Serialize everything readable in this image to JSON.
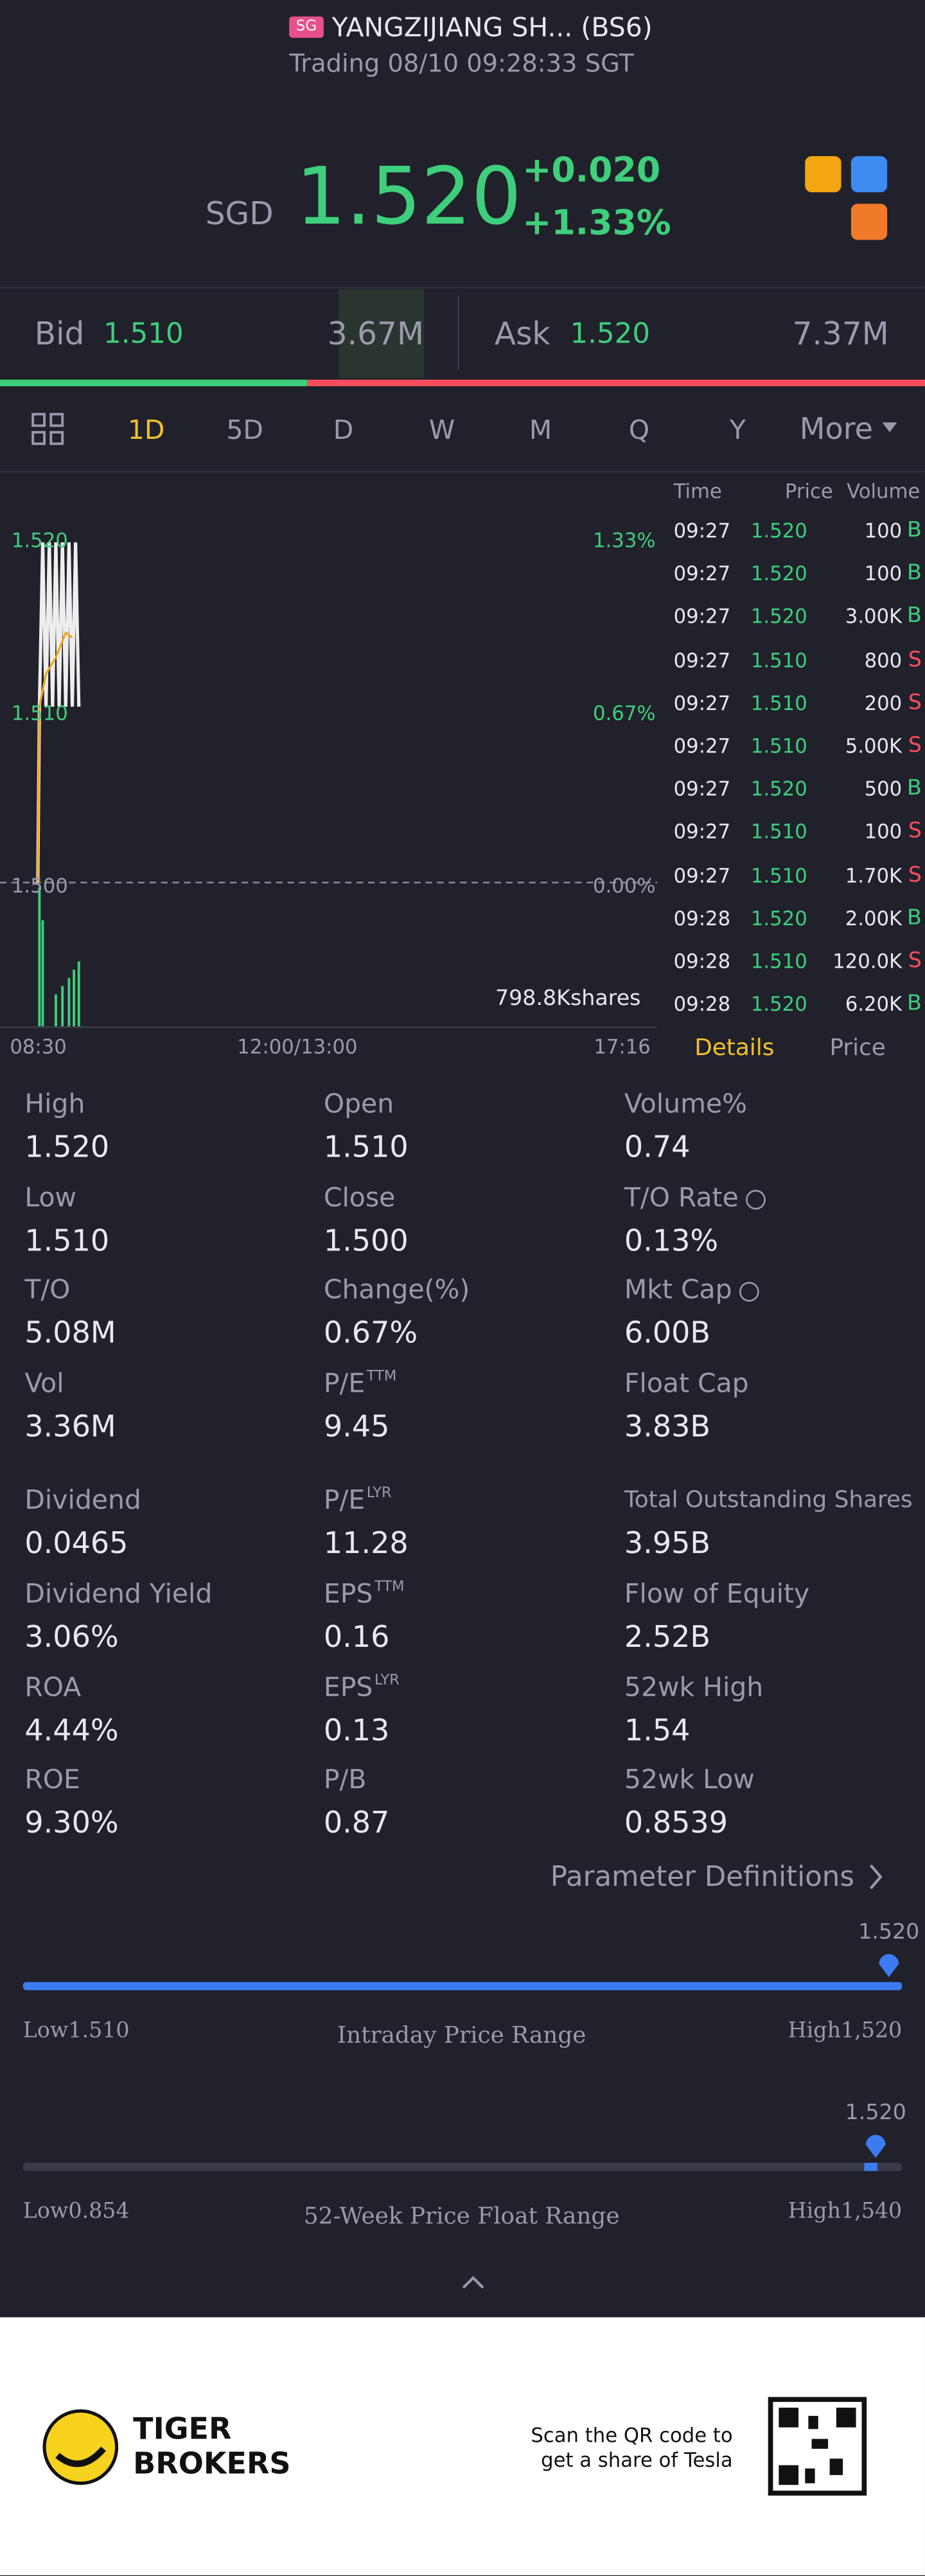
{
  "header": {
    "market": "SG",
    "name": "YANGZIJIANG SH... (BS6)",
    "status": "Trading 08/10 09:28:33 SGT"
  },
  "quote": {
    "currency": "SGD",
    "price": "1.520",
    "change": "+0.020",
    "change_pct": "+1.33%"
  },
  "bidask": {
    "bid_label": "Bid",
    "bid": "1.510",
    "bid_vol": "3.67M",
    "ask_label": "Ask",
    "ask": "1.520",
    "ask_vol": "7.37M"
  },
  "tabs": [
    "1D",
    "5D",
    "D",
    "W",
    "M",
    "Q",
    "Y",
    "More"
  ],
  "chart": {
    "left_labels": [
      "1.520",
      "1.510",
      "1.500"
    ],
    "right_labels": [
      "1.33%",
      "0.67%",
      "0.00%"
    ],
    "volume": "798.8Kshares",
    "time_labels": [
      "08:30",
      "12:00/13:00",
      "17:16"
    ]
  },
  "trades": {
    "headers": [
      "Time",
      "Price",
      "Volume"
    ],
    "rows": [
      [
        "09:27",
        "1.520",
        "100",
        "B"
      ],
      [
        "09:27",
        "1.520",
        "100",
        "B"
      ],
      [
        "09:27",
        "1.520",
        "3.00K",
        "B"
      ],
      [
        "09:27",
        "1.510",
        "800",
        "S"
      ],
      [
        "09:27",
        "1.510",
        "200",
        "S"
      ],
      [
        "09:27",
        "1.510",
        "5.00K",
        "S"
      ],
      [
        "09:27",
        "1.520",
        "500",
        "B"
      ],
      [
        "09:27",
        "1.510",
        "100",
        "S"
      ],
      [
        "09:27",
        "1.510",
        "1.70K",
        "S"
      ],
      [
        "09:28",
        "1.520",
        "2.00K",
        "B"
      ],
      [
        "09:28",
        "1.510",
        "120.0K",
        "S"
      ],
      [
        "09:28",
        "1.520",
        "6.20K",
        "B"
      ]
    ]
  },
  "trade_tabs": [
    "Details",
    "Price"
  ],
  "stats": [
    {
      "label": "High",
      "value": "1.520"
    },
    {
      "label": "Open",
      "value": "1.510"
    },
    {
      "label": "Volume%",
      "value": "0.74"
    },
    {
      "label": "Low",
      "value": "1.510"
    },
    {
      "label": "Close",
      "value": "1.500"
    },
    {
      "label": "T/O Rate",
      "value": "0.13%"
    },
    {
      "label": "T/O",
      "value": "5.08M"
    },
    {
      "label": "Change(%)",
      "value": "0.67%"
    },
    {
      "label": "Mkt Cap",
      "value": "6.00B"
    },
    {
      "label": "Vol",
      "value": "3.36M"
    },
    {
      "label": "P/E",
      "sup": "TTM",
      "value": "9.45"
    },
    {
      "label": "Float Cap",
      "value": "3.83B"
    },
    {
      "label": "Dividend",
      "value": "0.0465"
    },
    {
      "label": "P/E",
      "sup": "LYR",
      "value": "11.28"
    },
    {
      "label": "Total Outstanding Shares",
      "value": "3.95B"
    },
    {
      "label": "Dividend Yield",
      "value": "3.06%"
    },
    {
      "label": "EPS",
      "sup": "TTM",
      "value": "0.16"
    },
    {
      "label": "Flow of Equity",
      "value": "2.52B"
    },
    {
      "label": "ROA",
      "value": "4.44%"
    },
    {
      "label": "EPS",
      "sup": "LYR",
      "value": "0.13"
    },
    {
      "label": "52wk High",
      "value": "1.54"
    },
    {
      "label": "ROE",
      "value": "9.30%"
    },
    {
      "label": "P/B",
      "value": "0.87"
    },
    {
      "label": "52wk Low",
      "value": "0.8539"
    }
  ],
  "param_link": "Parameter Definitions",
  "ranges": [
    {
      "current": "1.520",
      "low": "Low1.510",
      "title": "Intraday Price Range",
      "high": "High1,520"
    },
    {
      "current": "1.520",
      "low": "Low0.854",
      "title": "52-Week Price Float Range",
      "high": "High1,540"
    }
  ],
  "footer": {
    "brand_line1": "TIGER",
    "brand_line2": "BROKERS",
    "qr_line1": "Scan the QR code to",
    "qr_line2": "get a share of Tesla"
  }
}
